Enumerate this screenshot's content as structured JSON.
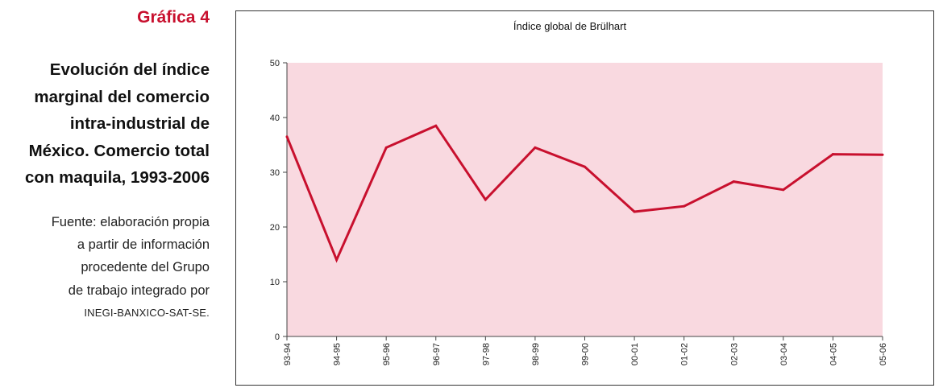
{
  "caption": {
    "figure_label": "Gráfica 4",
    "title_lines": [
      "Evolución del índice",
      "marginal del comercio",
      "intra-industrial de",
      "México. Comercio total",
      "con maquila, 1993-2006"
    ],
    "source_lines": [
      "Fuente: elaboración propia",
      "a partir de información",
      "procedente del Grupo",
      "de trabajo integrado por"
    ],
    "source_org": "INEGI-BANXICO-SAT-SE."
  },
  "colors": {
    "accent": "#c8102e",
    "plot_background": "#f9d9e0",
    "line": "#c8102e"
  },
  "chart_data": {
    "type": "line",
    "title": "Índice global de Brülhart",
    "xlabel": "",
    "ylabel": "",
    "categories": [
      "93-94",
      "94-95",
      "95-96",
      "96-97",
      "97-98",
      "98-99",
      "99-00",
      "00-01",
      "01-02",
      "02-03",
      "03-04",
      "04-05",
      "05-06"
    ],
    "values": [
      36.5,
      14.0,
      34.5,
      38.5,
      25.0,
      34.5,
      31.0,
      22.8,
      23.8,
      28.3,
      26.8,
      33.3,
      33.2
    ],
    "ylim": [
      0,
      50
    ],
    "yticks": [
      0,
      10,
      20,
      30,
      40,
      50
    ],
    "grid": false,
    "legend": "none"
  }
}
